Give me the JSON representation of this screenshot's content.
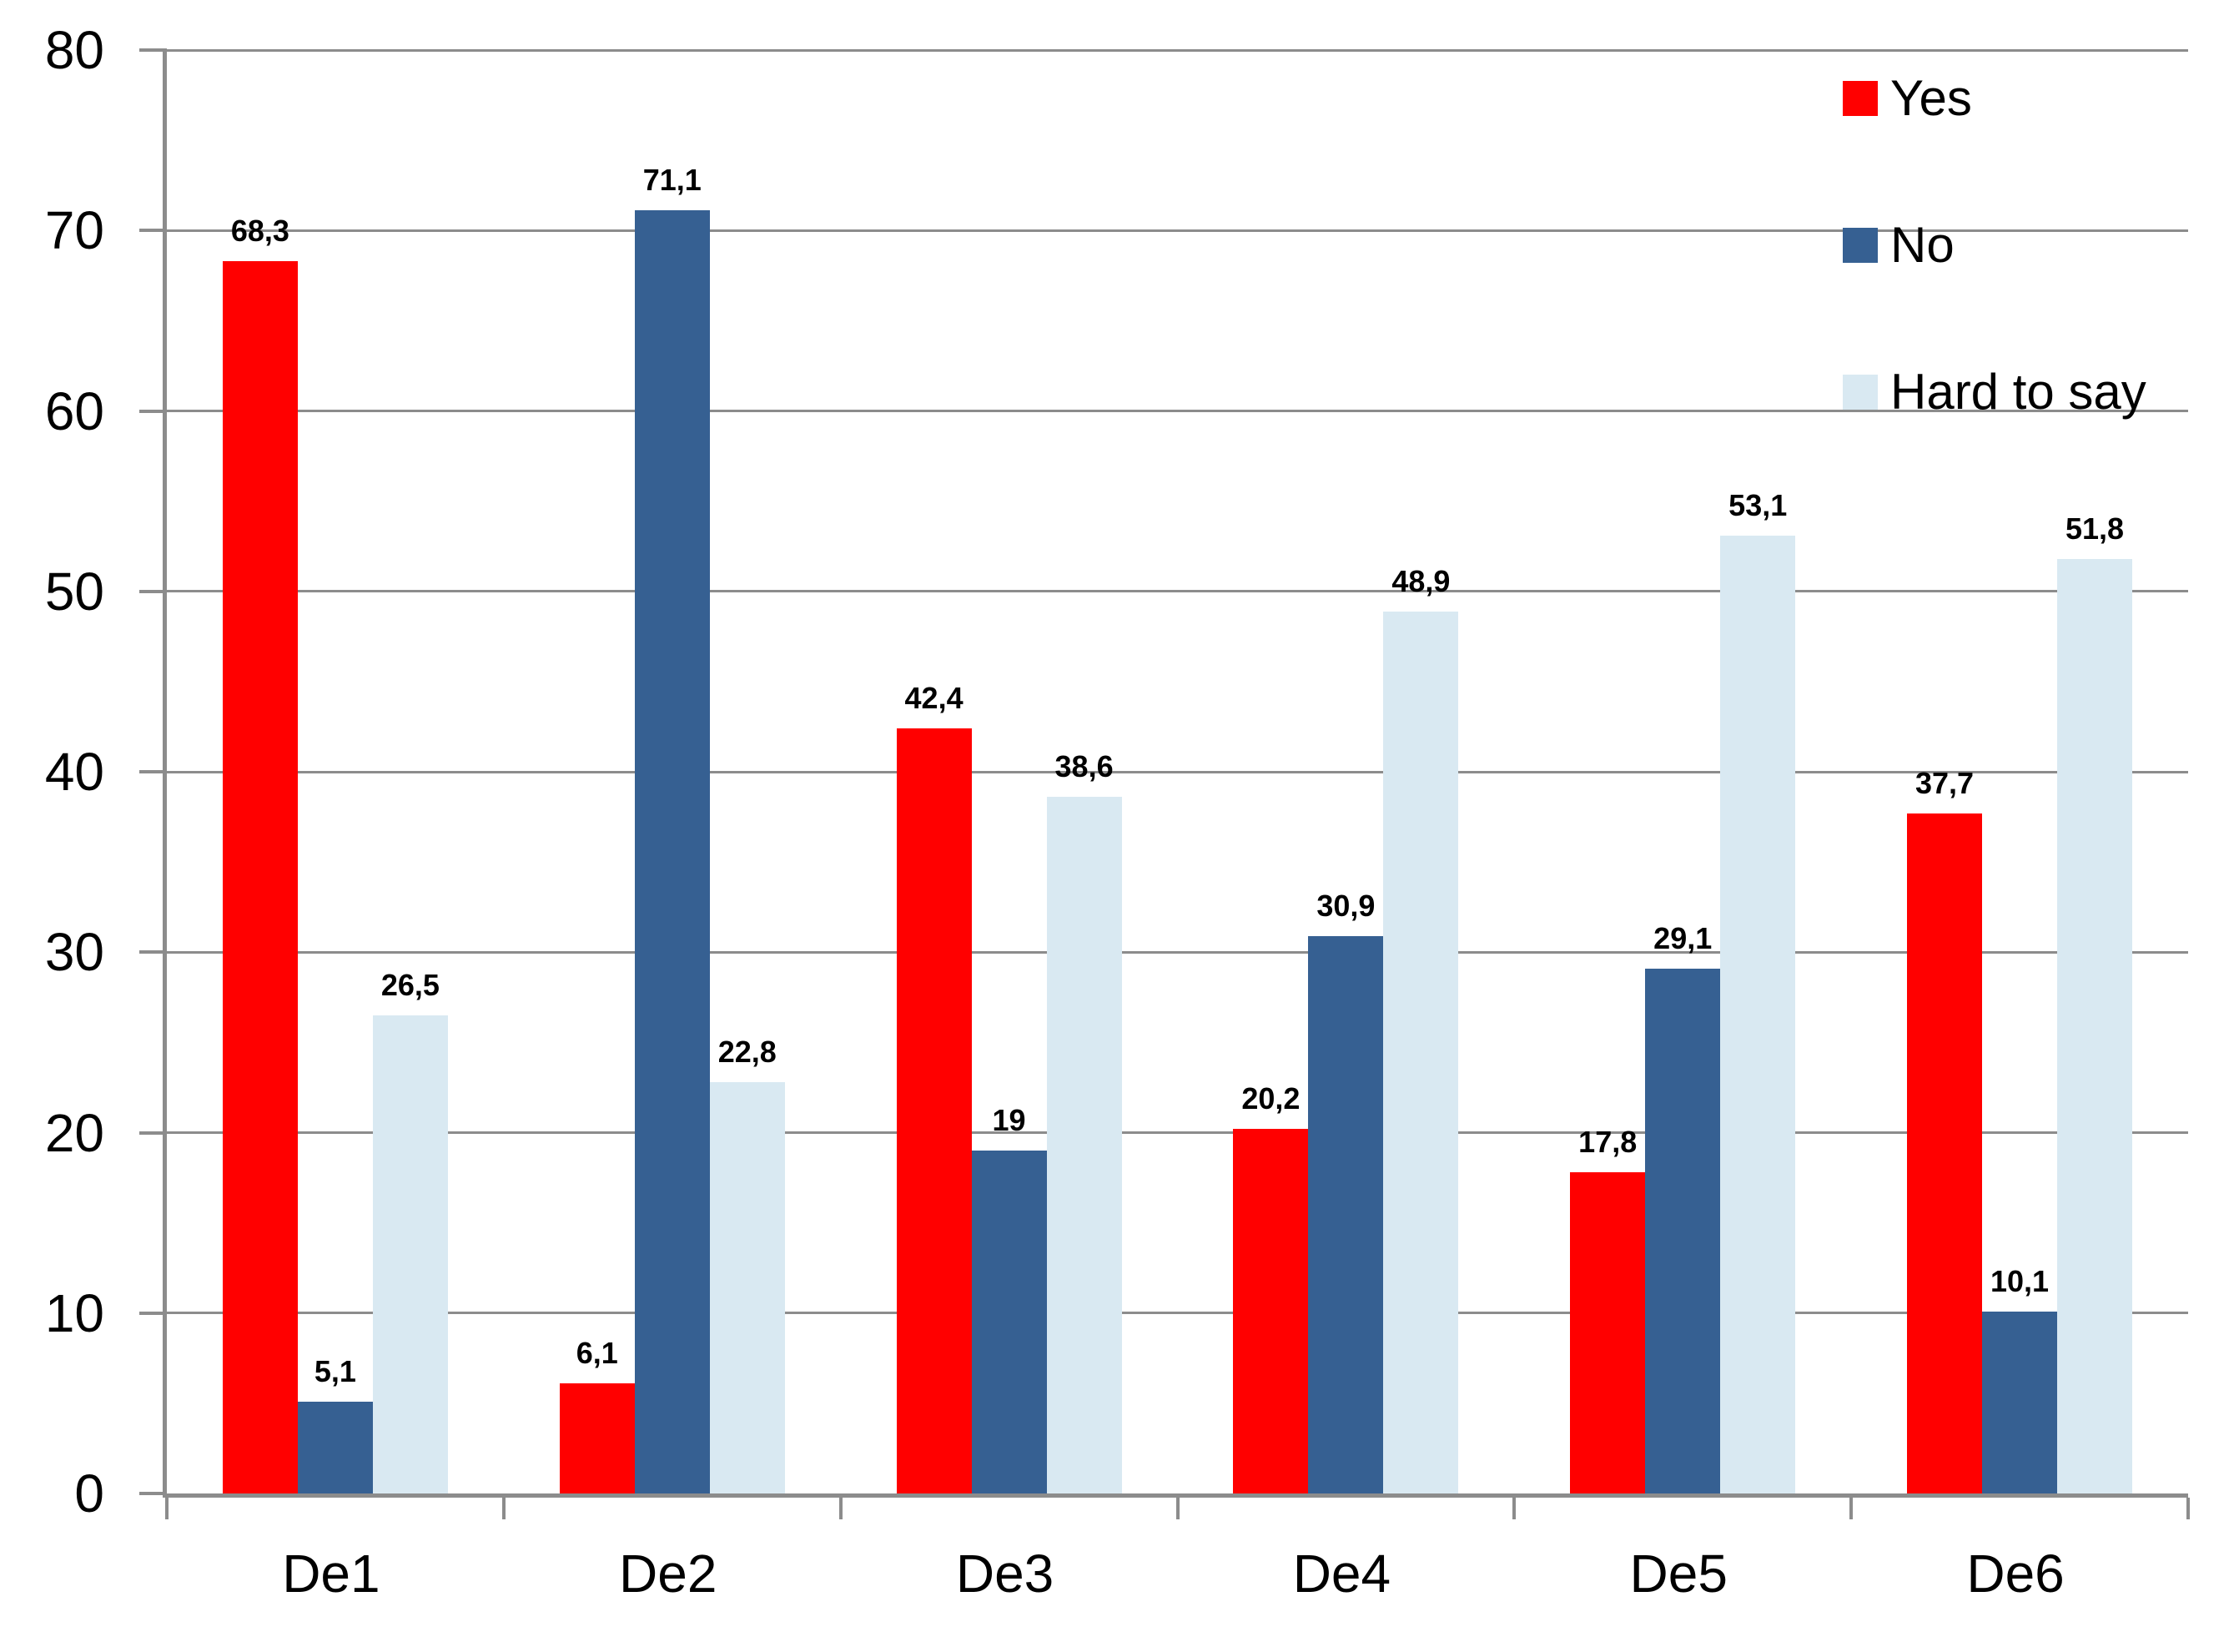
{
  "chart_data": {
    "type": "bar",
    "title": "",
    "xlabel": "",
    "ylabel": "",
    "categories": [
      "De1",
      "De2",
      "De3",
      "De4",
      "De5",
      "De6"
    ],
    "series": [
      {
        "name": "Yes",
        "color": "#FF0000",
        "values": [
          68.3,
          6.1,
          42.4,
          20.2,
          17.8,
          37.7
        ],
        "labels": [
          "68,3",
          "6,1",
          "42,4",
          "20,2",
          "17,8",
          "37,7"
        ]
      },
      {
        "name": "No",
        "color": "#366092",
        "values": [
          5.1,
          71.1,
          19,
          30.9,
          29.1,
          10.1
        ],
        "labels": [
          "5,1",
          "71,1",
          "19",
          "30,9",
          "29,1",
          "10,1"
        ]
      },
      {
        "name": "Hard to say",
        "color": "#D9E9F2",
        "values": [
          26.5,
          22.8,
          38.6,
          48.9,
          53.1,
          51.8
        ],
        "labels": [
          "26,5",
          "22,8",
          "38,6",
          "48,9",
          "53,1",
          "51,8"
        ]
      }
    ],
    "ylim": [
      0,
      80
    ],
    "y_ticks": [
      0,
      10,
      20,
      30,
      40,
      50,
      60,
      70,
      80
    ],
    "grid": true,
    "legend_position": "top-right",
    "decimal_separator": ","
  },
  "legend": {
    "items": [
      {
        "label": "Yes",
        "color": "#FF0000"
      },
      {
        "label": "No",
        "color": "#366092"
      },
      {
        "label": "Hard to say",
        "color": "#D9E9F2"
      }
    ]
  },
  "colors": {
    "background": "#FFFFFF",
    "grid": "#8C8C8C",
    "axis": "#8C8C8C",
    "text": "#000000"
  }
}
